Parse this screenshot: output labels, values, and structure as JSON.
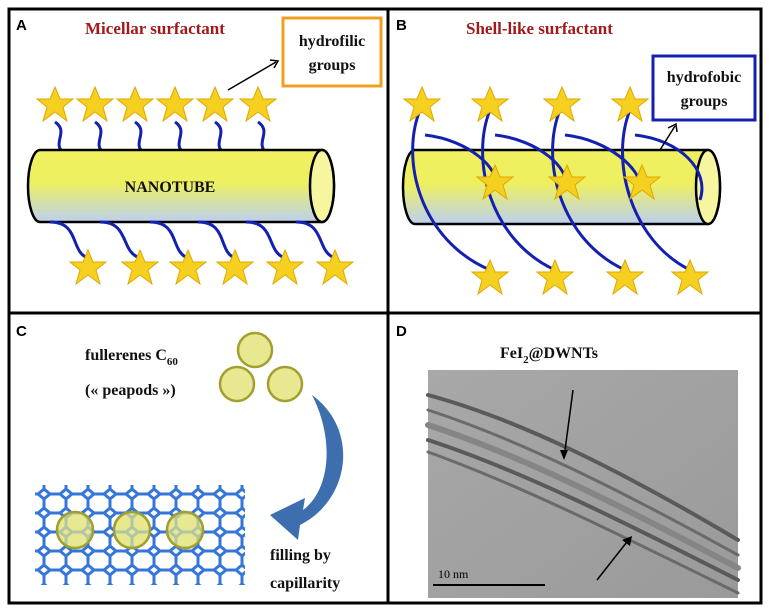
{
  "panels": [
    {
      "label": "A",
      "title": "Micellar surfactant",
      "callout": [
        "hydrofilic",
        "groups"
      ],
      "tube_label": "NANOTUBE"
    },
    {
      "label": "B",
      "title": "Shell-like surfactant",
      "callout": [
        "hydrofobic",
        "groups"
      ]
    },
    {
      "label": "C",
      "fullerenes": {
        "text": "fullerenes C",
        "subscript": "60"
      },
      "nickname": "(« peapods »)",
      "process": [
        "filling by",
        "capillarity"
      ]
    },
    {
      "label": "D",
      "title": {
        "text": "FeI",
        "subscript": "2",
        "suffix": "@DWNTs"
      },
      "scale_bar": "10 nm"
    }
  ]
}
